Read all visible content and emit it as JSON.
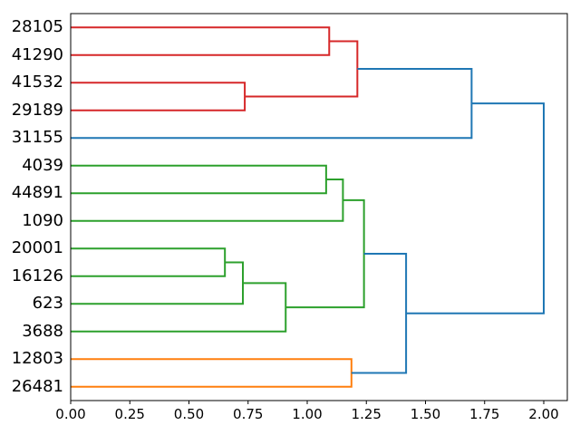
{
  "chart_data": {
    "type": "dendrogram",
    "orientation": "right",
    "title": "",
    "xlabel": "",
    "ylabel": "",
    "xlim": [
      0,
      2.1
    ],
    "grid": false,
    "legend": null,
    "leaf_labels": [
      "28105",
      "41290",
      "41532",
      "29189",
      "31155",
      "4039",
      "44891",
      "1090",
      "20001",
      "16126",
      "623",
      "3688",
      "12803",
      "26481"
    ],
    "x_ticks": [
      {
        "value": 0.0,
        "label": "0.00"
      },
      {
        "value": 0.25,
        "label": "0.25"
      },
      {
        "value": 0.5,
        "label": "0.50"
      },
      {
        "value": 0.75,
        "label": "0.75"
      },
      {
        "value": 1.0,
        "label": "1.00"
      },
      {
        "value": 1.25,
        "label": "1.25"
      },
      {
        "value": 1.5,
        "label": "1.50"
      },
      {
        "value": 1.75,
        "label": "1.75"
      },
      {
        "value": 2.0,
        "label": "2.00"
      }
    ],
    "merges": [
      {
        "id": "M0",
        "a": "28105",
        "b": "41290",
        "distance": 1.093,
        "color": "red"
      },
      {
        "id": "M1",
        "a": "41532",
        "b": "29189",
        "distance": 0.736,
        "color": "red"
      },
      {
        "id": "M2",
        "a": "M0",
        "b": "M1",
        "distance": 1.212,
        "color": "red"
      },
      {
        "id": "M3",
        "a": "4039",
        "b": "44891",
        "distance": 1.08,
        "color": "green"
      },
      {
        "id": "M4",
        "a": "M3",
        "b": "1090",
        "distance": 1.151,
        "color": "green"
      },
      {
        "id": "M5",
        "a": "20001",
        "b": "16126",
        "distance": 0.652,
        "color": "green"
      },
      {
        "id": "M6",
        "a": "M5",
        "b": "623",
        "distance": 0.728,
        "color": "green"
      },
      {
        "id": "M7",
        "a": "M6",
        "b": "3688",
        "distance": 0.909,
        "color": "green"
      },
      {
        "id": "M8",
        "a": "M4",
        "b": "M7",
        "distance": 1.24,
        "color": "green"
      },
      {
        "id": "M9",
        "a": "12803",
        "b": "26481",
        "distance": 1.187,
        "color": "orange"
      },
      {
        "id": "M10",
        "a": "M2",
        "b": "31155",
        "distance": 1.695,
        "color": "blue"
      },
      {
        "id": "M11",
        "a": "M8",
        "b": "M9",
        "distance": 1.418,
        "color": "blue"
      },
      {
        "id": "M12",
        "a": "M10",
        "b": "M11",
        "distance": 2.0,
        "color": "blue"
      }
    ],
    "colors": {
      "red": "#d62728",
      "green": "#2ca02c",
      "orange": "#ff7f0e",
      "blue": "#1f77b4",
      "frame": "#000000"
    }
  }
}
